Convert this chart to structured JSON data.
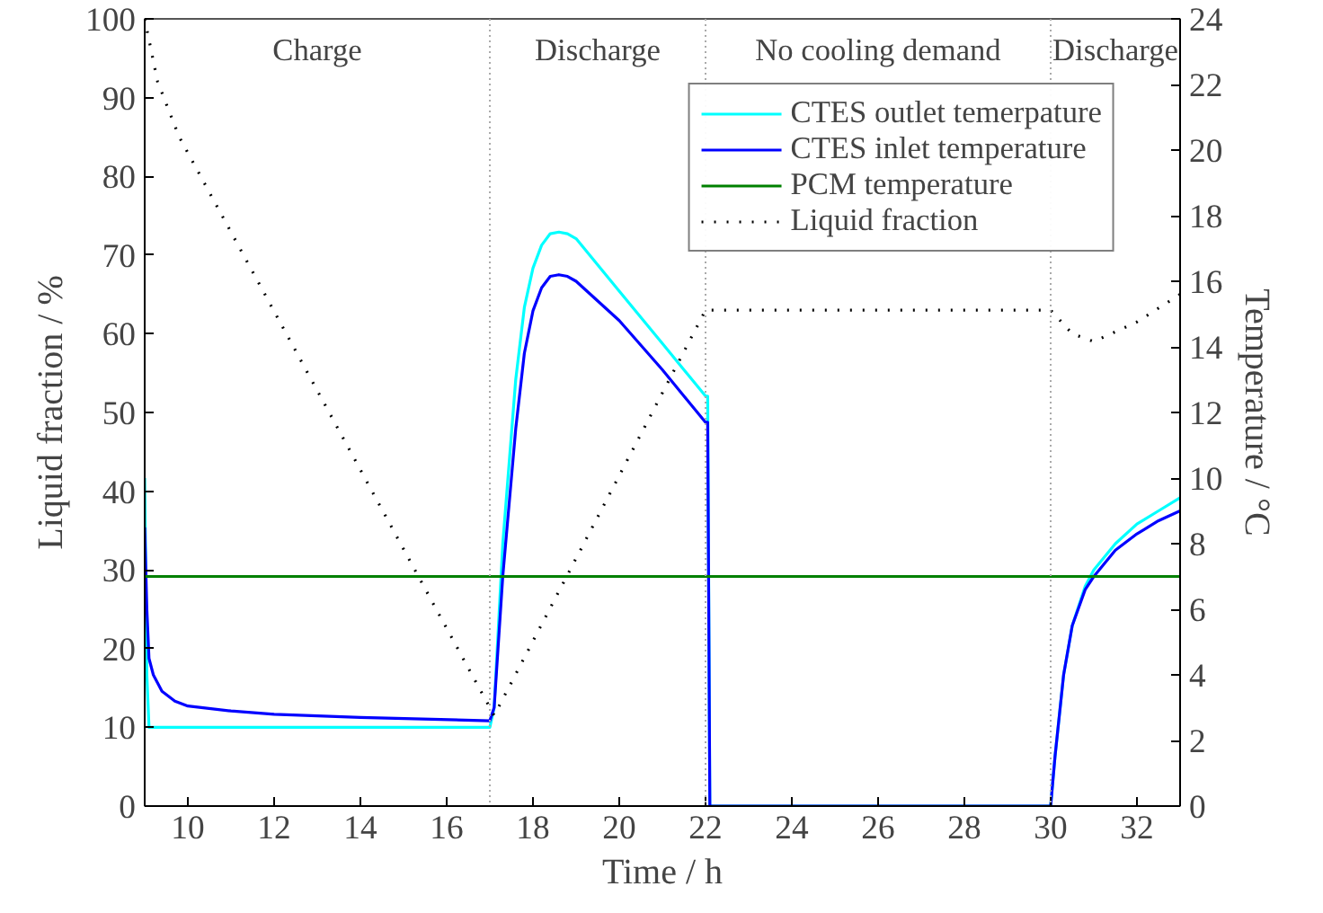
{
  "chart_data": {
    "type": "line",
    "xlabel": "Time / h",
    "ylabel": "Liquid fraction / %",
    "y2label": "Temperature / °C",
    "xlim": [
      9,
      33
    ],
    "xticks": [
      10,
      12,
      14,
      16,
      18,
      20,
      22,
      24,
      26,
      28,
      30,
      32
    ],
    "ylim": [
      0,
      100
    ],
    "yticks": [
      0,
      10,
      20,
      30,
      40,
      50,
      60,
      70,
      80,
      90,
      100
    ],
    "y2lim": [
      0,
      24
    ],
    "y2ticks": [
      0,
      2,
      4,
      6,
      8,
      10,
      12,
      14,
      16,
      18,
      20,
      22,
      24
    ],
    "grid": false,
    "legend": "top right",
    "marker": "none",
    "series": [
      {
        "name": "CTES outlet temerpature",
        "color": "#00ffff",
        "axis": "y2",
        "x": [
          9,
          9.05,
          9.1,
          17,
          17.1,
          17.3,
          17.6,
          17.8,
          18,
          18.2,
          18.4,
          18.6,
          18.8,
          19,
          20,
          21,
          22,
          22.05,
          22.1,
          30,
          30.1,
          30.3,
          30.5,
          30.8,
          31,
          31.5,
          32,
          32.5,
          33
        ],
        "values": [
          10,
          4,
          2.4,
          2.4,
          3,
          8,
          13,
          15.2,
          16.4,
          17.1,
          17.45,
          17.5,
          17.45,
          17.3,
          15.7,
          14.1,
          12.5,
          12.5,
          0,
          0,
          1.5,
          4,
          5.5,
          6.7,
          7.2,
          8,
          8.6,
          9,
          9.4
        ]
      },
      {
        "name": "CTES inlet temperature",
        "color": "#0000ff",
        "axis": "y2",
        "x": [
          9,
          9.05,
          9.1,
          9.2,
          9.4,
          9.7,
          10,
          11,
          12,
          14,
          17,
          17.1,
          17.3,
          17.6,
          17.8,
          18,
          18.2,
          18.4,
          18.6,
          18.8,
          19,
          20,
          21,
          22,
          22.05,
          22.1,
          30,
          30.1,
          30.3,
          30.5,
          30.8,
          31,
          31.5,
          32,
          32.5,
          33
        ],
        "values": [
          8.5,
          6,
          4.5,
          4,
          3.5,
          3.2,
          3.05,
          2.9,
          2.8,
          2.7,
          2.6,
          3,
          7,
          11.5,
          13.8,
          15.1,
          15.8,
          16.15,
          16.2,
          16.15,
          16,
          14.8,
          13.3,
          11.7,
          11.7,
          0,
          0,
          1.5,
          4,
          5.5,
          6.6,
          7,
          7.8,
          8.3,
          8.7,
          9
        ]
      },
      {
        "name": "PCM temperature",
        "color": "#008000",
        "axis": "y2",
        "x": [
          9,
          33
        ],
        "values": [
          7,
          7
        ]
      },
      {
        "name": "Liquid fraction",
        "color": "#000000",
        "line_style": "dotted",
        "x": [
          9,
          9.3,
          9.8,
          17.1,
          22,
          30,
          30.5,
          31,
          32,
          33
        ],
        "values": [
          100,
          92,
          85,
          11.5,
          63,
          63,
          60,
          59,
          61.5,
          65
        ]
      }
    ],
    "ref_lines": [
      {
        "axis": "x",
        "value": 17,
        "color": "#aaaaaa",
        "line_style": "dotted"
      },
      {
        "axis": "x",
        "value": 22,
        "color": "#aaaaaa",
        "line_style": "dotted"
      },
      {
        "axis": "x",
        "value": 30,
        "color": "#aaaaaa",
        "line_style": "dotted"
      }
    ],
    "annotations": [
      "Charge",
      "Discharge",
      "No cooling demand",
      "Discharge"
    ]
  }
}
